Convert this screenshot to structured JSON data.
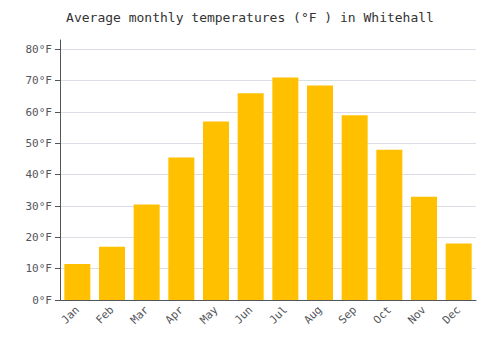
{
  "chart_data": {
    "type": "bar",
    "title": "Average monthly temperatures (°F ) in Whitehall",
    "categories": [
      "Jan",
      "Feb",
      "Mar",
      "Apr",
      "May",
      "Jun",
      "Jul",
      "Aug",
      "Sep",
      "Oct",
      "Nov",
      "Dec"
    ],
    "values": [
      11.5,
      17,
      30.5,
      45.5,
      57,
      66,
      71,
      68.5,
      59,
      48,
      33,
      18
    ],
    "color": "#FFC000",
    "ylim": [
      0,
      83
    ],
    "yticks": [
      {
        "value": 0,
        "label": "0°F"
      },
      {
        "value": 10,
        "label": "10°F"
      },
      {
        "value": 20,
        "label": "20°F"
      },
      {
        "value": 30,
        "label": "30°F"
      },
      {
        "value": 40,
        "label": "40°F"
      },
      {
        "value": 50,
        "label": "50°F"
      },
      {
        "value": 60,
        "label": "60°F"
      },
      {
        "value": 70,
        "label": "70°F"
      },
      {
        "value": 80,
        "label": "80°F"
      }
    ],
    "grid": true
  }
}
